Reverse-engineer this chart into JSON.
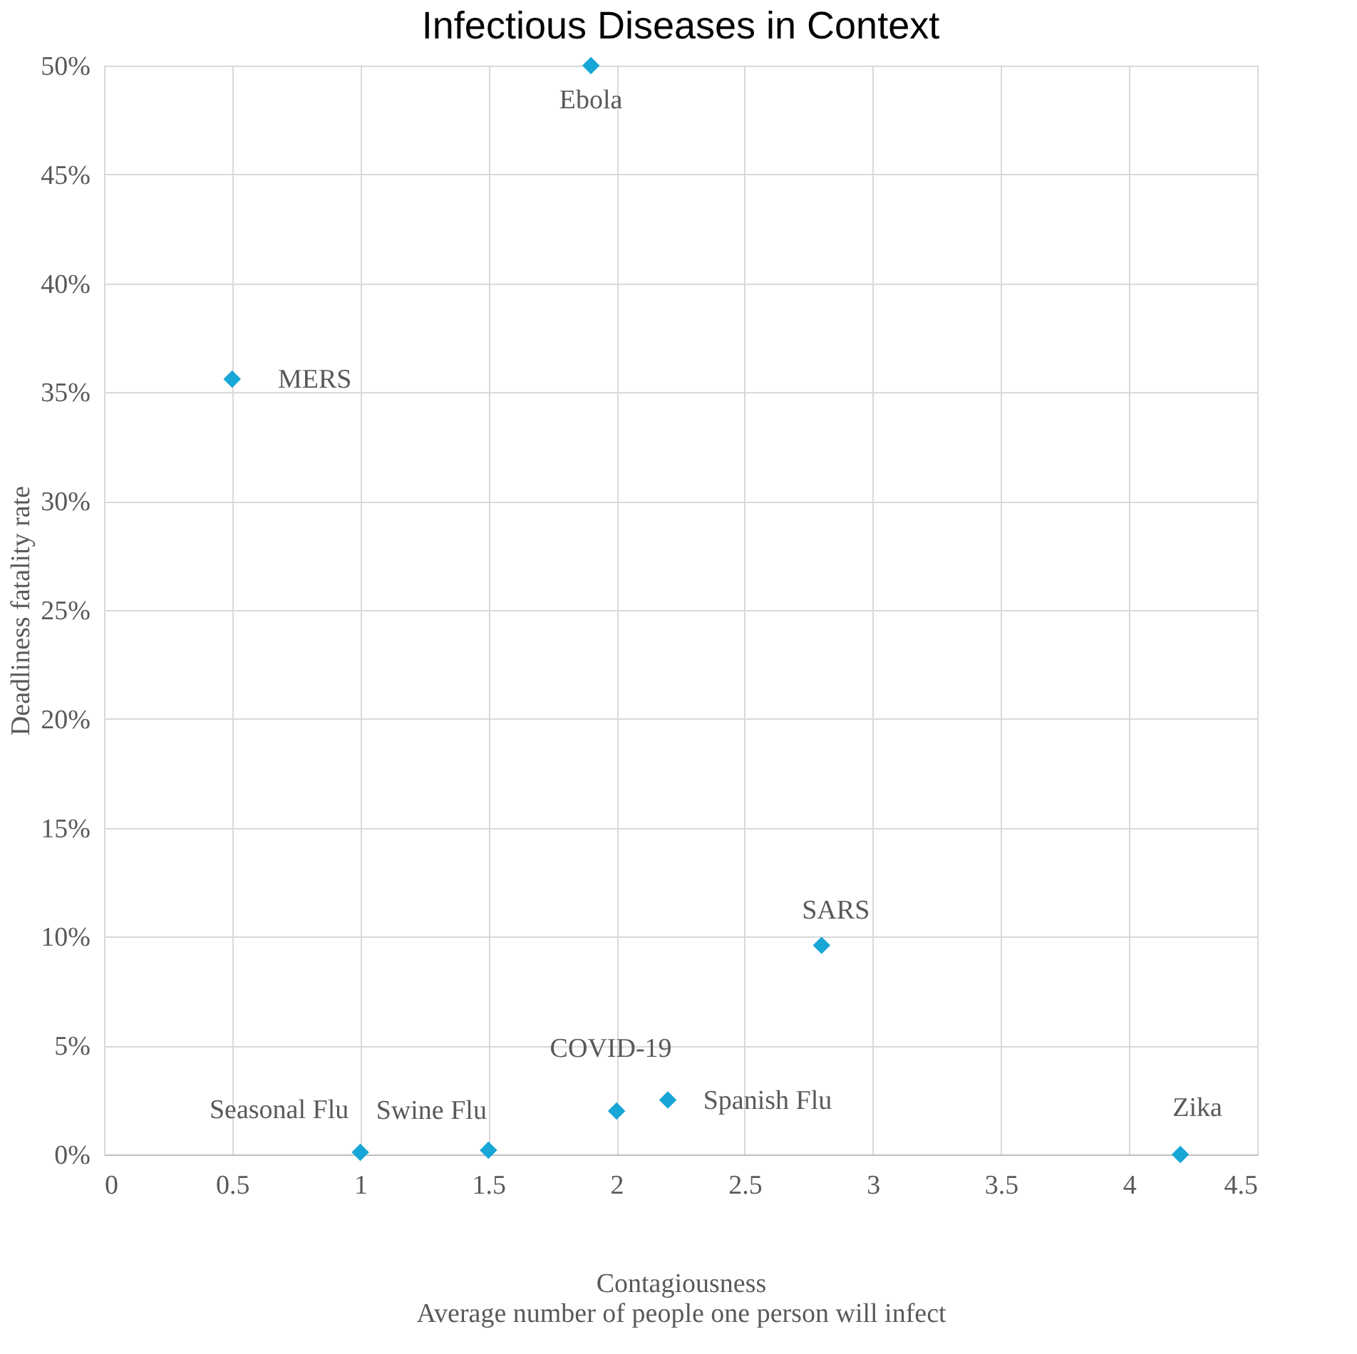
{
  "chart_data": {
    "type": "scatter",
    "title": "Infectious Diseases in Context",
    "xlabel": "Contagiousness\nAverage number of people one person will infect",
    "ylabel": "Deadliness fatality rate",
    "x": [
      1.9,
      0.5,
      2.8,
      2.2,
      2.0,
      1.0,
      1.5,
      4.2
    ],
    "series": [
      {
        "color": "#17a6d6",
        "values": [
          50,
          35.6,
          9.6,
          2.5,
          2.0,
          0.1,
          0.2,
          0
        ]
      }
    ],
    "xlim": [
      0,
      4.5
    ],
    "xticks": [
      0,
      0.5,
      1,
      1.5,
      2,
      2.5,
      3,
      3.5,
      4,
      4.5
    ],
    "ylim": [
      0,
      50
    ],
    "yticks": [
      {
        "value": 0,
        "label": "0%"
      },
      {
        "value": 5,
        "label": "5%"
      },
      {
        "value": 10,
        "label": "10%"
      },
      {
        "value": 15,
        "label": "15%"
      },
      {
        "value": 20,
        "label": "20%"
      },
      {
        "value": 25,
        "label": "25%"
      },
      {
        "value": 30,
        "label": "30%"
      },
      {
        "value": 35,
        "label": "35%"
      },
      {
        "value": 40,
        "label": "40%"
      },
      {
        "value": 45,
        "label": "45%"
      },
      {
        "value": 50,
        "label": "50%"
      }
    ],
    "grid": true,
    "marker": "diamond",
    "annotations": [
      {
        "text": "Ebola",
        "x": 1.9,
        "y": 50
      },
      {
        "text": "MERS",
        "x": 0.5,
        "y": 35.6
      },
      {
        "text": "SARS",
        "x": 2.8,
        "y": 9.6
      },
      {
        "text": "Spanish Flu",
        "x": 2.2,
        "y": 2.5
      },
      {
        "text": "COVID-19",
        "x": 2.0,
        "y": 2.0
      },
      {
        "text": "Seasonal Flu",
        "x": 1.0,
        "y": 0.1
      },
      {
        "text": "Swine Flu",
        "x": 1.5,
        "y": 0.2
      },
      {
        "text": "Zika",
        "x": 4.2,
        "y": 0
      }
    ]
  }
}
